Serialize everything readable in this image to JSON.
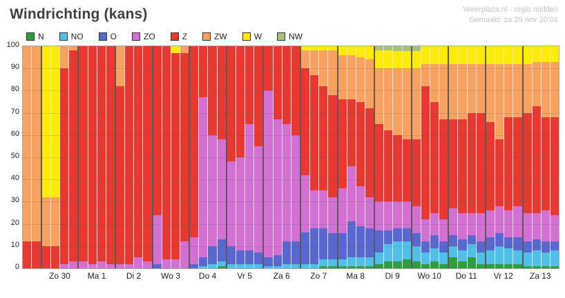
{
  "header": {
    "title": "Windrichting (kans)",
    "source_line1": "Weerplaza.nl - regio midden",
    "source_line2": "Gemaakt: za 29 nov 20:01"
  },
  "chart_data": {
    "type": "bar",
    "stacked": true,
    "title": "Windrichting (kans)",
    "unit": "%",
    "ylim": [
      0,
      100
    ],
    "yticks": [
      0,
      10,
      20,
      30,
      40,
      50,
      60,
      70,
      80,
      90,
      100
    ],
    "grid": true,
    "legend_position": "top",
    "series_names": [
      "N",
      "NO",
      "O",
      "ZO",
      "Z",
      "ZW",
      "W",
      "NW"
    ],
    "series_colors": [
      "#2f9e3f",
      "#4fc0e8",
      "#5968d0",
      "#d46fd4",
      "#e8382f",
      "#f9a25f",
      "#ffec00",
      "#a9bf7a"
    ],
    "days": [
      {
        "label": "",
        "bars": [
          [
            0,
            0,
            0,
            0,
            12,
            88,
            0,
            0
          ],
          [
            0,
            0,
            0,
            0,
            12,
            88,
            0,
            0
          ]
        ]
      },
      {
        "label": "Zo 30",
        "bars": [
          [
            0,
            0,
            0,
            0,
            10,
            22,
            68,
            0
          ],
          [
            0,
            0,
            0,
            0,
            10,
            22,
            68,
            0
          ],
          [
            0,
            0,
            0,
            2,
            88,
            10,
            0,
            0
          ],
          [
            0,
            0,
            0,
            3,
            95,
            2,
            0,
            0
          ]
        ]
      },
      {
        "label": "Ma 1",
        "bars": [
          [
            0,
            0,
            0,
            3,
            97,
            0,
            0,
            0
          ],
          [
            0,
            0,
            0,
            2,
            98,
            0,
            0,
            0
          ],
          [
            0,
            0,
            0,
            3,
            97,
            0,
            0,
            0
          ],
          [
            0,
            0,
            0,
            2,
            98,
            0,
            0,
            0
          ]
        ]
      },
      {
        "label": "Di 2",
        "bars": [
          [
            0,
            0,
            0,
            2,
            80,
            18,
            0,
            0
          ],
          [
            0,
            0,
            0,
            2,
            98,
            0,
            0,
            0
          ],
          [
            0,
            0,
            0,
            5,
            95,
            0,
            0,
            0
          ],
          [
            0,
            0,
            0,
            3,
            97,
            0,
            0,
            0
          ]
        ]
      },
      {
        "label": "Wo 3",
        "bars": [
          [
            0,
            0,
            2,
            22,
            76,
            0,
            0,
            0
          ],
          [
            0,
            0,
            0,
            4,
            96,
            0,
            0,
            0
          ],
          [
            0,
            0,
            0,
            4,
            93,
            0,
            3,
            0
          ],
          [
            0,
            0,
            0,
            12,
            85,
            3,
            0,
            0
          ]
        ]
      },
      {
        "label": "Do 4",
        "bars": [
          [
            0,
            0,
            2,
            12,
            86,
            0,
            0,
            0
          ],
          [
            0,
            1,
            4,
            72,
            23,
            0,
            0,
            0
          ],
          [
            0,
            2,
            8,
            50,
            40,
            0,
            0,
            0
          ],
          [
            1,
            2,
            10,
            45,
            42,
            0,
            0,
            0
          ]
        ]
      },
      {
        "label": "Vr 5",
        "bars": [
          [
            0,
            2,
            8,
            38,
            52,
            0,
            0,
            0
          ],
          [
            0,
            2,
            6,
            42,
            50,
            0,
            0,
            0
          ],
          [
            0,
            2,
            6,
            57,
            35,
            0,
            0,
            0
          ],
          [
            0,
            2,
            5,
            48,
            45,
            0,
            0,
            0
          ]
        ]
      },
      {
        "label": "Za 6",
        "bars": [
          [
            0,
            1,
            4,
            75,
            20,
            0,
            0,
            0
          ],
          [
            0,
            1,
            5,
            61,
            33,
            0,
            0,
            0
          ],
          [
            0,
            2,
            10,
            53,
            35,
            0,
            0,
            0
          ],
          [
            0,
            2,
            10,
            48,
            40,
            0,
            0,
            0
          ]
        ]
      },
      {
        "label": "Zo 7",
        "bars": [
          [
            0,
            2,
            14,
            26,
            48,
            8,
            2,
            0
          ],
          [
            0,
            2,
            16,
            17,
            52,
            11,
            2,
            0
          ],
          [
            1,
            3,
            14,
            17,
            47,
            16,
            2,
            0
          ],
          [
            1,
            3,
            12,
            16,
            46,
            20,
            2,
            0
          ]
        ]
      },
      {
        "label": "Ma 8",
        "bars": [
          [
            1,
            3,
            12,
            20,
            40,
            20,
            4,
            0
          ],
          [
            1,
            4,
            16,
            25,
            30,
            20,
            4,
            0
          ],
          [
            1,
            4,
            14,
            18,
            38,
            20,
            5,
            0
          ],
          [
            1,
            4,
            13,
            14,
            40,
            22,
            6,
            0
          ]
        ]
      },
      {
        "label": "Di 9",
        "bars": [
          [
            2,
            5,
            10,
            13,
            35,
            25,
            8,
            2
          ],
          [
            3,
            8,
            6,
            13,
            32,
            28,
            8,
            2
          ],
          [
            3,
            9,
            6,
            12,
            30,
            30,
            8,
            2
          ],
          [
            4,
            8,
            6,
            12,
            28,
            32,
            8,
            2
          ]
        ]
      },
      {
        "label": "Wo 10",
        "bars": [
          [
            3,
            7,
            6,
            12,
            30,
            32,
            8,
            2
          ],
          [
            2,
            5,
            5,
            10,
            60,
            10,
            8,
            0
          ],
          [
            3,
            6,
            6,
            10,
            50,
            17,
            8,
            0
          ],
          [
            2,
            5,
            5,
            10,
            45,
            25,
            8,
            0
          ]
        ]
      },
      {
        "label": "Do 11",
        "bars": [
          [
            5,
            5,
            5,
            12,
            40,
            25,
            8,
            0
          ],
          [
            3,
            5,
            5,
            12,
            42,
            25,
            8,
            0
          ],
          [
            5,
            6,
            4,
            10,
            45,
            22,
            8,
            0
          ],
          [
            2,
            5,
            5,
            13,
            45,
            22,
            8,
            0
          ]
        ]
      },
      {
        "label": "Vr 12",
        "bars": [
          [
            2,
            6,
            6,
            12,
            40,
            26,
            8,
            0
          ],
          [
            2,
            8,
            6,
            12,
            30,
            34,
            8,
            0
          ],
          [
            2,
            7,
            5,
            12,
            42,
            24,
            8,
            0
          ],
          [
            2,
            6,
            6,
            14,
            40,
            24,
            8,
            0
          ]
        ]
      },
      {
        "label": "Za 13",
        "bars": [
          [
            1,
            6,
            5,
            13,
            45,
            22,
            8,
            0
          ],
          [
            1,
            7,
            5,
            12,
            48,
            20,
            7,
            0
          ],
          [
            1,
            6,
            5,
            14,
            42,
            25,
            7,
            0
          ],
          [
            1,
            7,
            4,
            12,
            44,
            25,
            7,
            0
          ]
        ]
      }
    ]
  }
}
